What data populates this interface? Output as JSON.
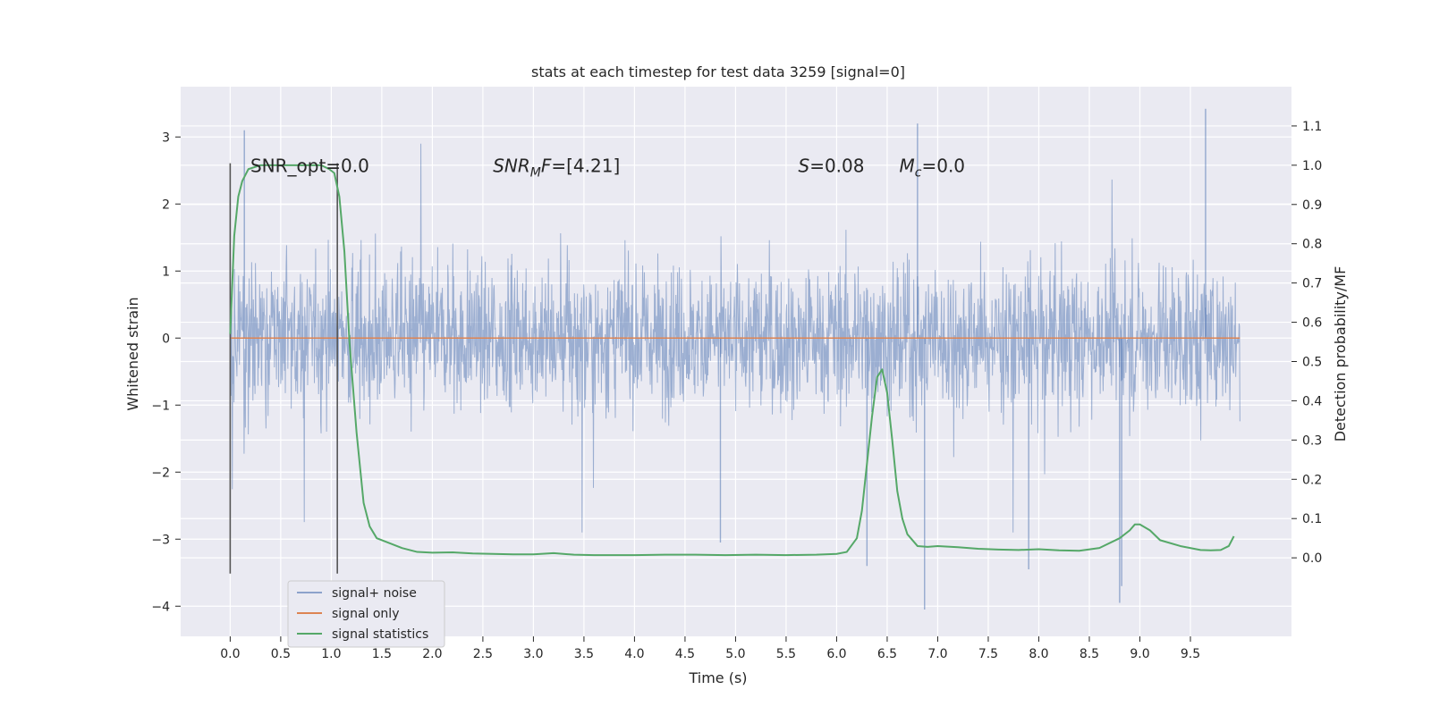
{
  "chart_data": {
    "type": "line",
    "title": "stats at each timestep for test data 3259 [signal=0]",
    "xlabel": "Time (s)",
    "ylabel": "Whitened strain",
    "y2label": "Detection probability/MF",
    "xlim": [
      -0.49,
      10.5
    ],
    "ylim": [
      -4.45,
      3.75
    ],
    "y2lim": [
      -0.2,
      1.2
    ],
    "x_ticks": [
      0.0,
      0.5,
      1.0,
      1.5,
      2.0,
      2.5,
      3.0,
      3.5,
      4.0,
      4.5,
      5.0,
      5.5,
      6.0,
      6.5,
      7.0,
      7.5,
      8.0,
      8.5,
      9.0,
      9.5
    ],
    "x_tick_labels": [
      "0.0",
      "0.5",
      "1.0",
      "1.5",
      "2.0",
      "2.5",
      "3.0",
      "3.5",
      "4.0",
      "4.5",
      "5.0",
      "5.5",
      "6.0",
      "6.5",
      "7.0",
      "7.5",
      "8.0",
      "8.5",
      "9.0",
      "9.5"
    ],
    "y_ticks": [
      -4,
      -3,
      -2,
      -1,
      0,
      1,
      2,
      3
    ],
    "y_tick_labels": [
      "−4",
      "−3",
      "−2",
      "−1",
      "0",
      "1",
      "2",
      "3"
    ],
    "y2_ticks": [
      0.0,
      0.1,
      0.2,
      0.3,
      0.4,
      0.5,
      0.6,
      0.7,
      0.8,
      0.9,
      1.0,
      1.1
    ],
    "y2_tick_labels": [
      "0.0",
      "0.1",
      "0.2",
      "0.3",
      "0.4",
      "0.5",
      "0.6",
      "0.7",
      "0.8",
      "0.9",
      "1.0",
      "1.1"
    ],
    "grid": true,
    "legend_position": "lower-left",
    "legend": [
      "signal+ noise",
      "signal only",
      "signal statistics"
    ],
    "colors": {
      "signal_noise": "#4c72b0",
      "signal_only": "#dd8452",
      "signal_statistics": "#55a868",
      "background": "#eaeaf2",
      "grid": "#ffffff",
      "vlines": "#555555"
    },
    "series": [
      {
        "name": "signal+ noise",
        "axis": "left",
        "x_range": [
          0.0,
          9.99
        ],
        "typical_envelope": [
          -1.5,
          1.5
        ],
        "notable_peaks": [
          {
            "x": 0.14,
            "y": 3.1
          },
          {
            "x": 6.8,
            "y": 3.2
          },
          {
            "x": 9.65,
            "y": 3.42
          },
          {
            "x": 6.87,
            "y": -4.05
          },
          {
            "x": 8.8,
            "y": -3.95
          },
          {
            "x": 8.82,
            "y": -3.7
          },
          {
            "x": 6.3,
            "y": -3.4
          },
          {
            "x": 7.9,
            "y": -3.45
          },
          {
            "x": 4.85,
            "y": -3.05
          }
        ]
      },
      {
        "name": "signal only",
        "axis": "left",
        "x": [
          0.0,
          9.99
        ],
        "y": [
          0.0,
          0.0
        ]
      },
      {
        "name": "signal statistics",
        "axis": "right",
        "x": [
          0.0,
          0.04,
          0.08,
          0.12,
          0.18,
          0.3,
          0.5,
          0.7,
          0.9,
          0.98,
          1.03,
          1.08,
          1.13,
          1.18,
          1.25,
          1.32,
          1.38,
          1.45,
          1.55,
          1.7,
          1.85,
          2.0,
          2.2,
          2.4,
          2.6,
          2.8,
          3.0,
          3.2,
          3.4,
          3.6,
          3.8,
          4.0,
          4.3,
          4.6,
          4.9,
          5.2,
          5.5,
          5.8,
          6.0,
          6.1,
          6.2,
          6.25,
          6.3,
          6.35,
          6.4,
          6.45,
          6.5,
          6.55,
          6.6,
          6.65,
          6.7,
          6.8,
          6.9,
          7.0,
          7.2,
          7.4,
          7.6,
          7.8,
          8.0,
          8.2,
          8.4,
          8.6,
          8.8,
          8.9,
          8.95,
          9.0,
          9.1,
          9.2,
          9.4,
          9.6,
          9.7,
          9.8,
          9.88,
          9.93
        ],
        "y": [
          0.57,
          0.82,
          0.92,
          0.96,
          0.99,
          1.0,
          1.0,
          1.0,
          1.0,
          0.99,
          0.98,
          0.92,
          0.78,
          0.55,
          0.32,
          0.14,
          0.08,
          0.05,
          0.04,
          0.025,
          0.015,
          0.013,
          0.014,
          0.011,
          0.01,
          0.009,
          0.009,
          0.012,
          0.008,
          0.007,
          0.007,
          0.007,
          0.008,
          0.008,
          0.007,
          0.008,
          0.007,
          0.008,
          0.01,
          0.015,
          0.05,
          0.12,
          0.24,
          0.36,
          0.46,
          0.48,
          0.42,
          0.3,
          0.17,
          0.1,
          0.06,
          0.03,
          0.028,
          0.03,
          0.027,
          0.023,
          0.021,
          0.02,
          0.022,
          0.019,
          0.018,
          0.025,
          0.05,
          0.07,
          0.085,
          0.085,
          0.07,
          0.045,
          0.03,
          0.02,
          0.019,
          0.02,
          0.03,
          0.055
        ]
      }
    ],
    "vertical_lines": [
      {
        "x": 0.0,
        "y2_from": -0.04,
        "y2_to": 1.005
      },
      {
        "x": 1.06,
        "y2_from": -0.04,
        "y2_to": 1.005
      }
    ],
    "annotations": [
      {
        "text_main": "SNR_opt=0.0",
        "y": 2.6,
        "x": 0.2
      },
      {
        "text_sym": "SNR",
        "text_sub": "M",
        "text_sym2": "F",
        "text_rest": "=[4.21]",
        "y": 2.6,
        "x": 2.6
      },
      {
        "text_sym": "S",
        "text_rest": "=0.08",
        "y": 2.6,
        "x": 5.62
      },
      {
        "text_sym": "M",
        "text_sub": "c",
        "text_rest": "=0.0",
        "y": 2.6,
        "x": 6.62
      }
    ]
  }
}
